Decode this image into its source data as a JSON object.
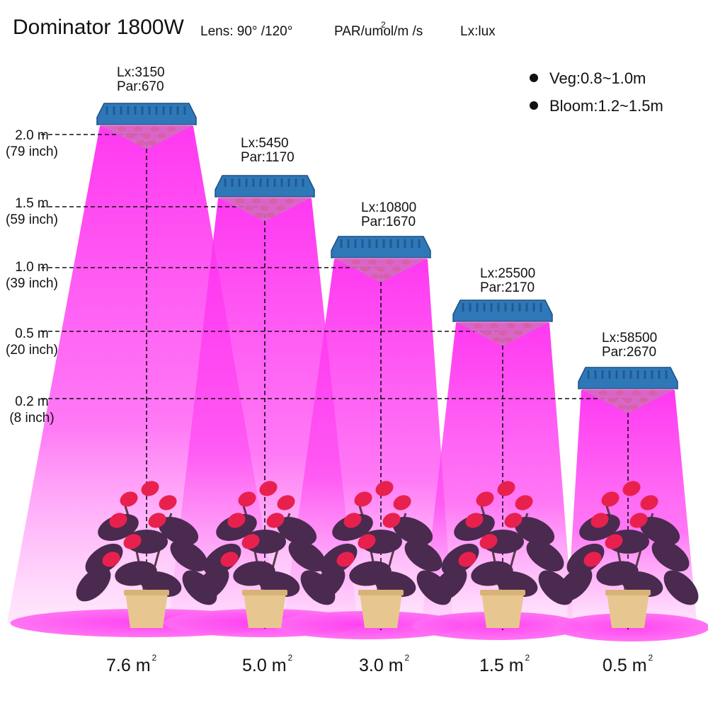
{
  "header": {
    "title": "Dominator 1800W",
    "lens": "Lens:  90°  /120°",
    "par_unit": "PAR/umol/m  /s",
    "par_unit_sup": "2",
    "lux_unit": "Lx:lux"
  },
  "legend": [
    {
      "label": "Veg:0.8~1.0m"
    },
    {
      "label": "Bloom:1.2~1.5m"
    }
  ],
  "heights": [
    {
      "m": "2.0 m",
      "inch": "(79 inch)"
    },
    {
      "m": "1.5 m",
      "inch": "(59 inch)"
    },
    {
      "m": "1.0 m",
      "inch": "(39 inch)"
    },
    {
      "m": "0.5 m",
      "inch": "(20 inch)"
    },
    {
      "m": "0.2 m",
      "inch": "(8 inch)"
    }
  ],
  "readings": [
    {
      "lx": "Lx:3150",
      "par": "Par:670"
    },
    {
      "lx": "Lx:5450",
      "par": "Par:1170"
    },
    {
      "lx": "Lx:10800",
      "par": "Par:1670"
    },
    {
      "lx": "Lx:25500",
      "par": "Par:2170"
    },
    {
      "lx": "Lx:58500",
      "par": "Par:2670"
    }
  ],
  "areas": [
    {
      "value": "7.6 m",
      "sup": "2"
    },
    {
      "value": "5.0 m",
      "sup": "2"
    },
    {
      "value": "3.0 m",
      "sup": "2"
    },
    {
      "value": "1.5 m",
      "sup": "2"
    },
    {
      "value": "0.5 m",
      "sup": "2"
    }
  ],
  "colors": {
    "beam": "#ff2ef0",
    "beam_fade": "#ffd6fb",
    "lamp_body": "#2f78b8",
    "lamp_edge": "#1b4f85",
    "led": "#d85fa8",
    "leaf": "#4a2a4e",
    "flower": "#e8204e",
    "pot": "#e7c78f"
  }
}
